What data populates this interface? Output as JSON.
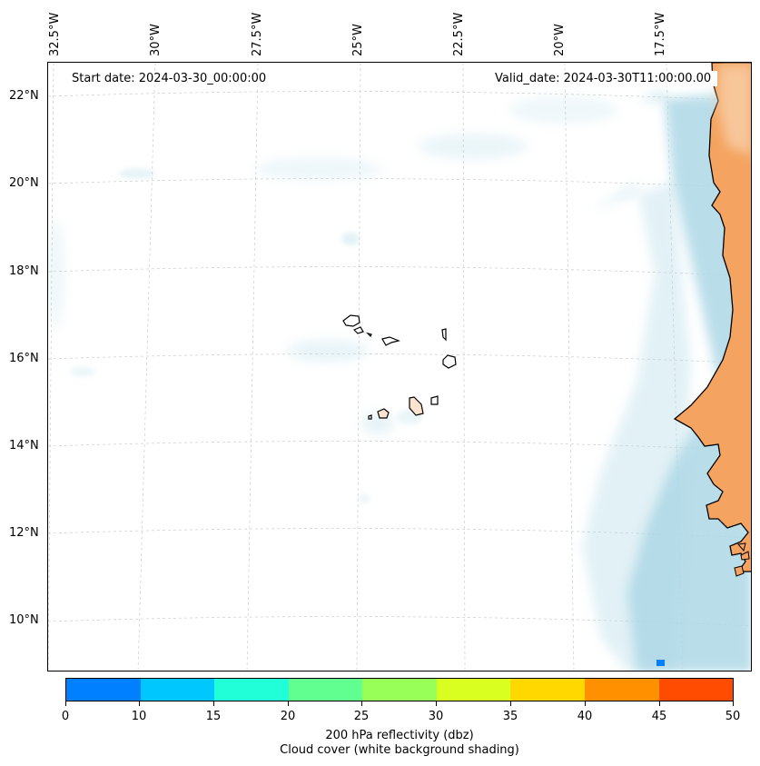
{
  "map": {
    "start_date": "Start date: 2024-03-30_00:00:00",
    "valid_date": "Valid_date: 2024-03-30T11:00:00.00",
    "lon_labels": [
      "32.5°W",
      "30°W",
      "27.5°W",
      "25°W",
      "22.5°W",
      "20°W",
      "17.5°W"
    ],
    "lat_labels": [
      "22°N",
      "20°N",
      "18°N",
      "16°N",
      "14°N",
      "12°N",
      "10°N"
    ],
    "land_color": "#f4a460",
    "cloud_color": "#add8e6"
  },
  "colorbar": {
    "colors": [
      "#0080ff",
      "#00c8ff",
      "#20ffd8",
      "#60ff90",
      "#98ff58",
      "#d8ff20",
      "#ffd800",
      "#ff9000",
      "#ff4c00"
    ],
    "ticks": [
      "0",
      "10",
      "15",
      "20",
      "25",
      "30",
      "35",
      "40",
      "45",
      "50"
    ],
    "label": "200 hPa reflectivity (dbz)",
    "sublabel": "Cloud cover (white background shading)"
  }
}
